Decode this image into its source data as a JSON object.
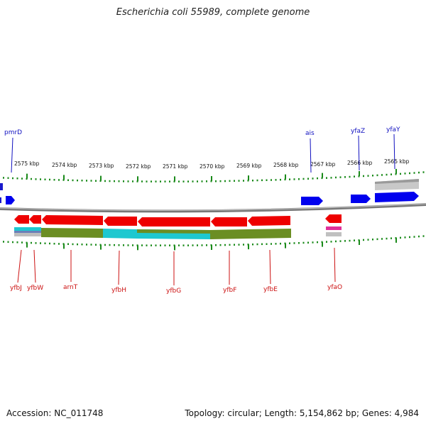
{
  "title": "Escherichia coli 55989, complete genome",
  "footer": {
    "accession": "Accession: NC_011748",
    "summary": "Topology: circular; Length: 5,154,862 bp; Genes: 4,984"
  },
  "colors": {
    "forward_gene": "#0000ee",
    "reverse_gene": "#ee0000",
    "tick": "#1a8a1a",
    "backbone": "#888888",
    "forward_label": "#1010c0",
    "reverse_label": "#cc1111",
    "cds_olive": "#6b8e23",
    "cds_cyan": "#1ec8d0",
    "cds_grey": "#bbbbbb",
    "cds_magenta": "#e0309a"
  },
  "ticks": [
    {
      "label": "2575 kbp"
    },
    {
      "label": "2574 kbp"
    },
    {
      "label": "2573 kbp"
    },
    {
      "label": "2572 kbp"
    },
    {
      "label": "2571 kbp"
    },
    {
      "label": "2570 kbp"
    },
    {
      "label": "2569 kbp"
    },
    {
      "label": "2568 kbp"
    },
    {
      "label": "2567 kbp"
    },
    {
      "label": "2566 kbp"
    },
    {
      "label": "2565 kbp"
    }
  ],
  "forward_labels": [
    "pmrD",
    "ais",
    "yfaZ",
    "yfaY"
  ],
  "reverse_labels": [
    "yfbJ",
    "yfbW",
    "arnT",
    "yfbH",
    "yfbG",
    "yfbF",
    "yfbE",
    "yfaO"
  ]
}
